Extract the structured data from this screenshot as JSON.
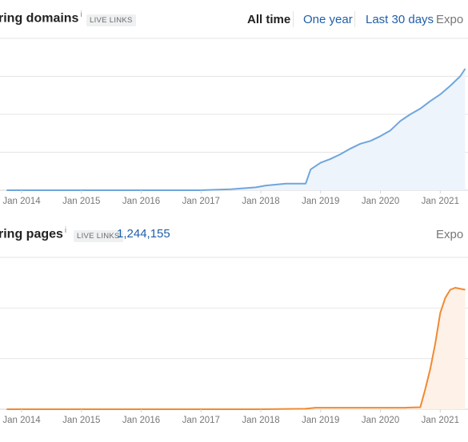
{
  "top": {
    "title": "ring domains",
    "info_icon": "i",
    "badge": "LIVE LINKS",
    "ranges": [
      "All time",
      "One year",
      "Last 30 days"
    ],
    "active_range": "All time",
    "export_label": "Expo"
  },
  "bottom": {
    "title": "ring pages",
    "info_icon": "i",
    "badge": "LIVE LINKS",
    "count": "1,244,155",
    "export_label": "Expo"
  },
  "colors": {
    "domains_line": "#6fa6dc",
    "domains_fill": "#eef4fc",
    "pages_line": "#f08a32",
    "pages_fill": "#fdf1e8",
    "grid": "#e6e6e6",
    "link": "#1f5fa8"
  },
  "chart_data": [
    {
      "type": "area",
      "title": "",
      "x_ticks": [
        "Jan 2014",
        "Jan 2015",
        "Jan 2016",
        "Jan 2017",
        "Jan 2018",
        "Jan 2019",
        "Jan 2020",
        "Jan 2021"
      ],
      "x": [
        "2013-10",
        "2014-01",
        "2015-01",
        "2016-01",
        "2017-01",
        "2017-07",
        "2017-12",
        "2018-02",
        "2018-06",
        "2018-10",
        "2018-11",
        "2019-01",
        "2019-03",
        "2019-05",
        "2019-07",
        "2019-09",
        "2019-11",
        "2020-01",
        "2020-03",
        "2020-05",
        "2020-07",
        "2020-09",
        "2020-11",
        "2021-01",
        "2021-03",
        "2021-05",
        "2021-06"
      ],
      "values": [
        0,
        0,
        0,
        0,
        0,
        1,
        3,
        5,
        7,
        7,
        22,
        29,
        33,
        38,
        44,
        49,
        52,
        57,
        63,
        73,
        80,
        86,
        94,
        101,
        110,
        120,
        128
      ],
      "ylim": [
        0,
        160
      ],
      "grid": true
    },
    {
      "type": "area",
      "title": "",
      "x_ticks": [
        "Jan 2014",
        "Jan 2015",
        "Jan 2016",
        "Jan 2017",
        "Jan 2018",
        "Jan 2019",
        "Jan 2020",
        "Jan 2021"
      ],
      "x": [
        "2013-10",
        "2014-01",
        "2015-01",
        "2016-01",
        "2017-01",
        "2018-01",
        "2018-10",
        "2018-12",
        "2019-06",
        "2020-01",
        "2020-06",
        "2020-09",
        "2020-10",
        "2020-11",
        "2020-12",
        "2021-01",
        "2021-02",
        "2021-03",
        "2021-04",
        "2021-06"
      ],
      "values": [
        0,
        0,
        0,
        0,
        0,
        0,
        0.5,
        1.5,
        1.5,
        1.5,
        1.5,
        2,
        20,
        40,
        65,
        95,
        110,
        118,
        120,
        118
      ],
      "ylim": [
        0,
        150
      ],
      "grid": true
    }
  ]
}
